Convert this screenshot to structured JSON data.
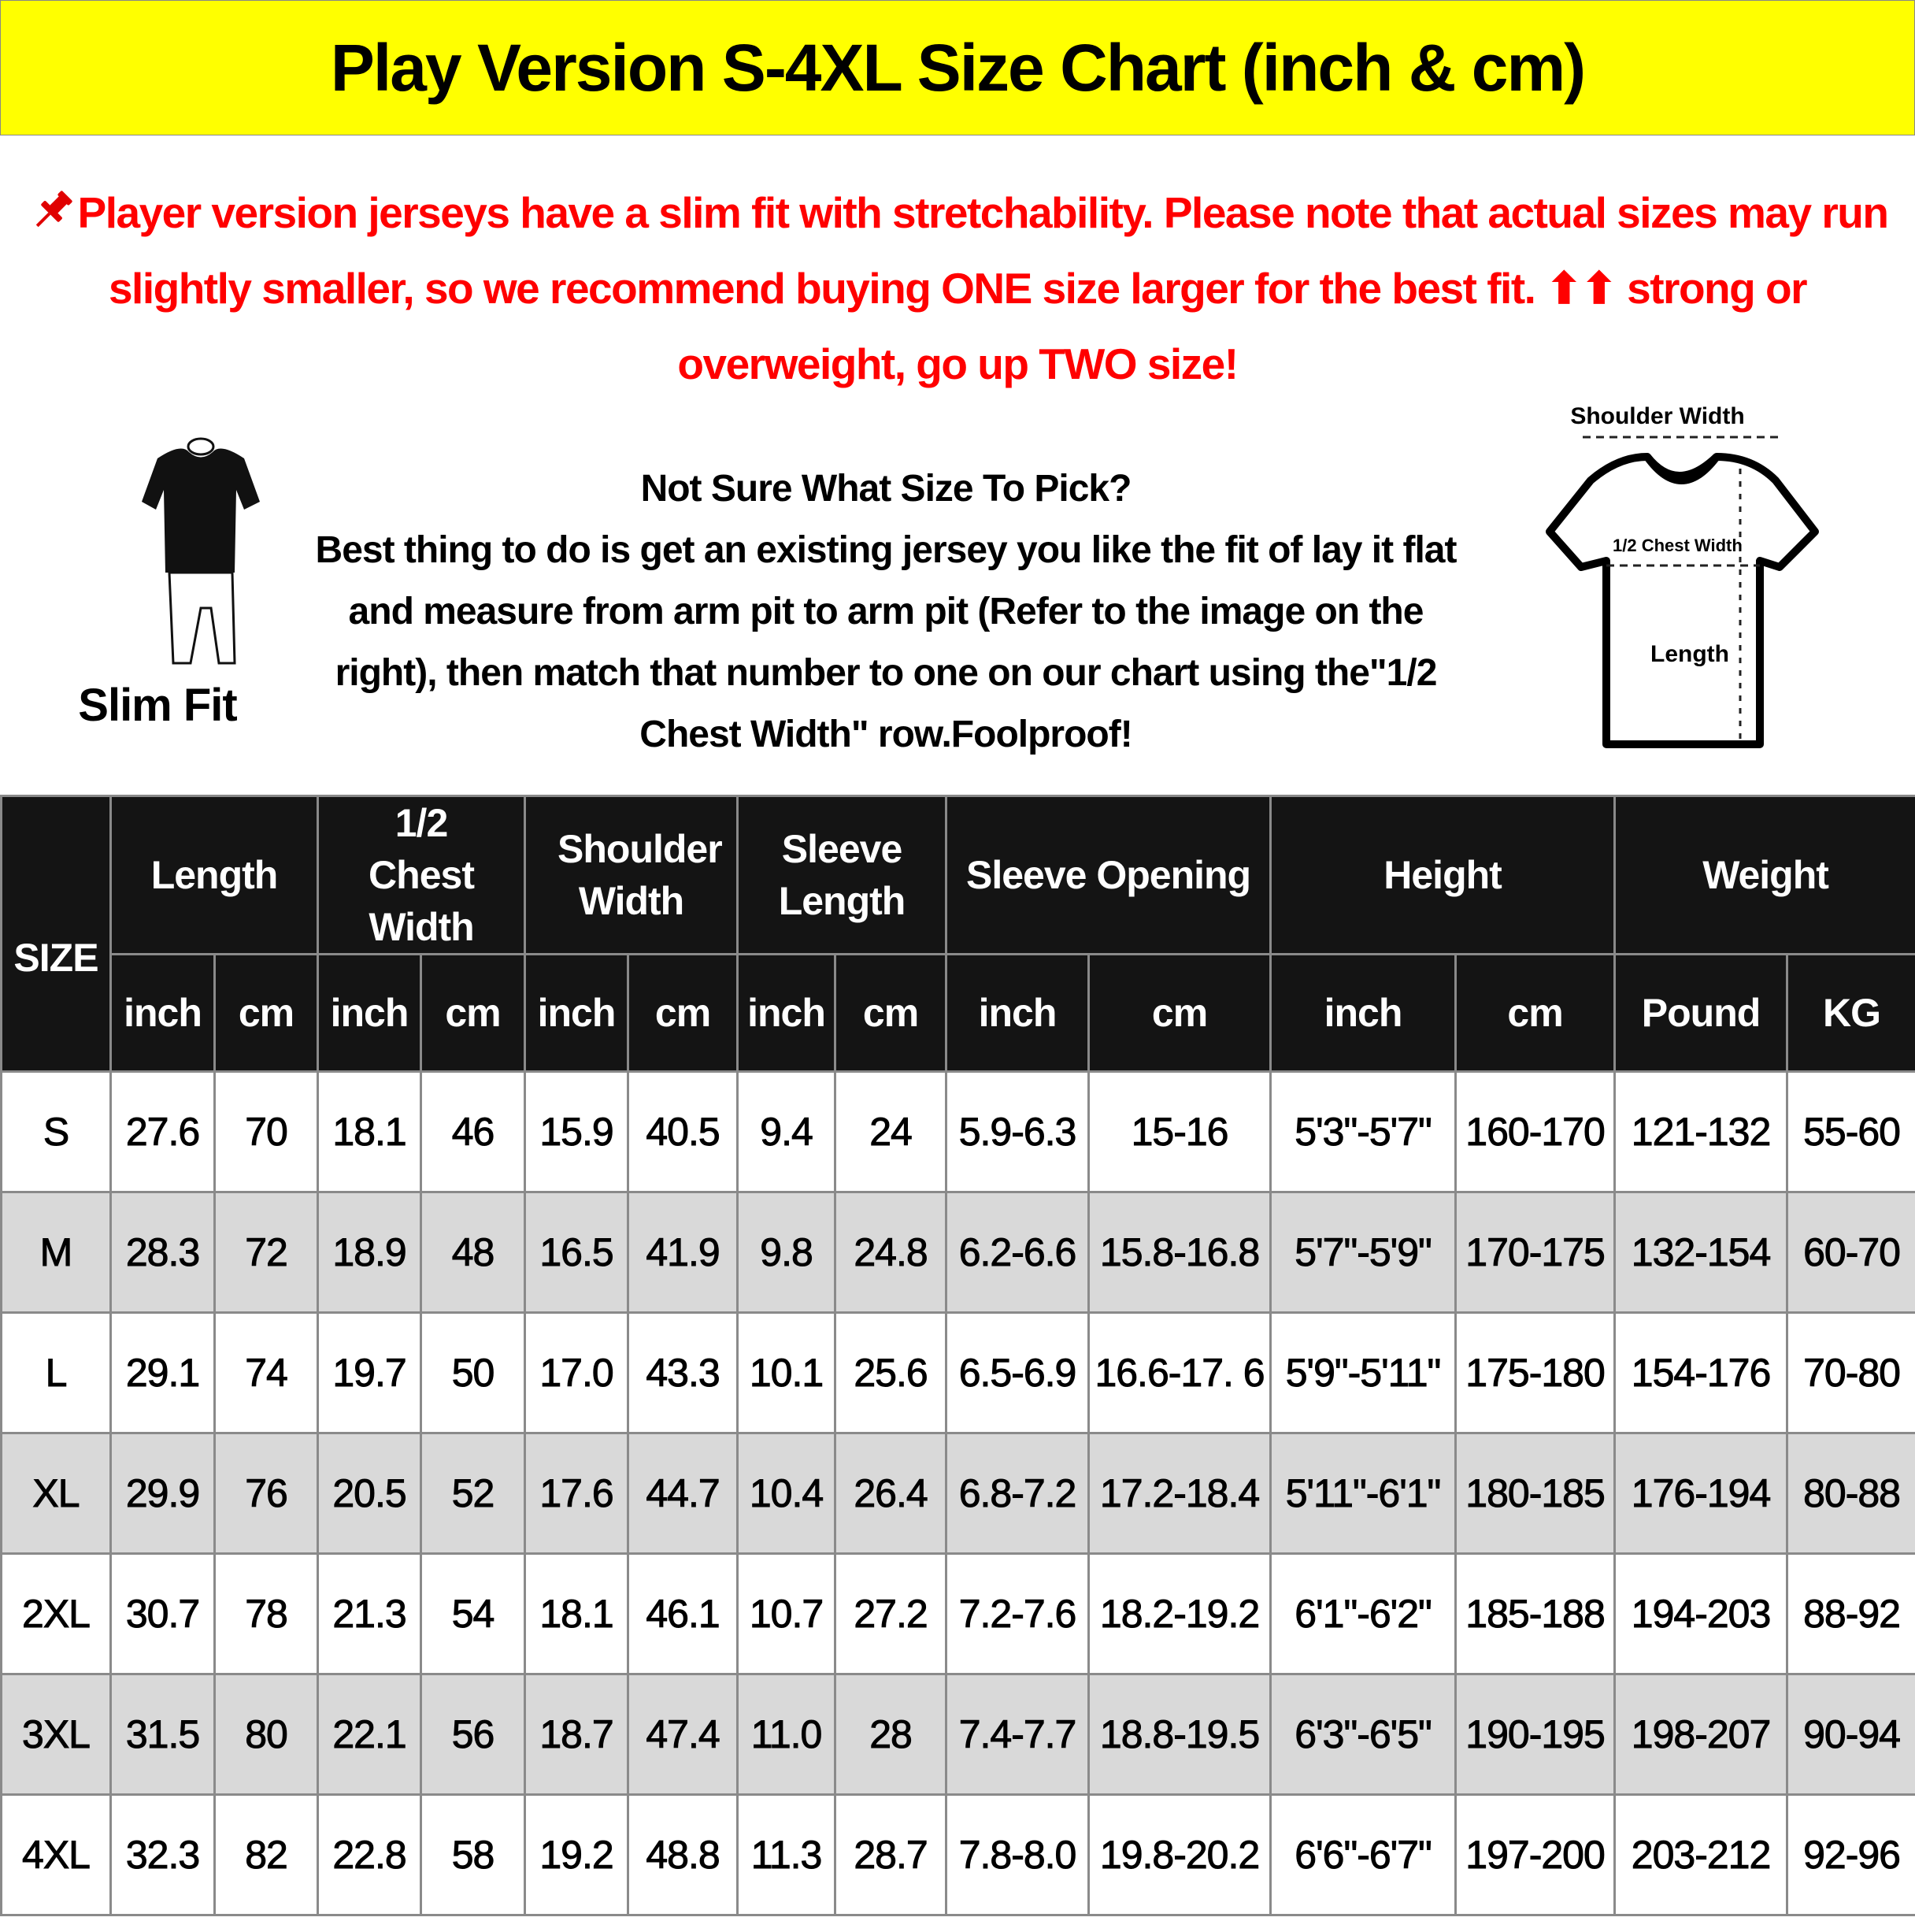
{
  "title": "Play Version S-4XL Size Chart (inch & cm)",
  "note": {
    "icon": "pushpin-icon",
    "text": "Player version jerseys have a slim fit with stretchability. Please note that actual sizes may run slightly smaller, so we recommend buying ONE size larger for the best fit. ⬆⬆ strong or overweight, go up TWO size!",
    "color": "#ff0000"
  },
  "slim_fit_label": "Slim Fit",
  "advice": {
    "heading": "Not Sure What Size To Pick?",
    "body": "Best thing to do is get an existing jersey you like the fit of lay it flat and measure from arm pit to arm pit (Refer to the image on the right), then match that number to one on our chart using the\"1/2 Chest Width\" row.Foolproof!"
  },
  "diagram": {
    "shoulder": "Shoulder Width",
    "chest": "1/2 Chest Width",
    "length": "Length"
  },
  "table": {
    "size_header": "SIZE",
    "groups": [
      "Length",
      "1/2 Chest Width",
      "Shoulder Width",
      "Sleeve Length",
      "Sleeve Opening",
      "Height",
      "Weight"
    ],
    "units": [
      "inch",
      "cm",
      "inch",
      "cm",
      "inch",
      "cm",
      "inch",
      "cm",
      "inch",
      "cm",
      "inch",
      "cm",
      "Pound",
      "KG"
    ],
    "rows": [
      [
        "S",
        "27.6",
        "70",
        "18.1",
        "46",
        "15.9",
        "40.5",
        "9.4",
        "24",
        "5.9-6.3",
        "15-16",
        "5'3\"-5'7\"",
        "160-170",
        "121-132",
        "55-60"
      ],
      [
        "M",
        "28.3",
        "72",
        "18.9",
        "48",
        "16.5",
        "41.9",
        "9.8",
        "24.8",
        "6.2-6.6",
        "15.8-16.8",
        "5'7\"-5'9\"",
        "170-175",
        "132-154",
        "60-70"
      ],
      [
        "L",
        "29.1",
        "74",
        "19.7",
        "50",
        "17.0",
        "43.3",
        "10.1",
        "25.6",
        "6.5-6.9",
        "16.6-17. 6",
        "5'9\"-5'11\"",
        "175-180",
        "154-176",
        "70-80"
      ],
      [
        "XL",
        "29.9",
        "76",
        "20.5",
        "52",
        "17.6",
        "44.7",
        "10.4",
        "26.4",
        "6.8-7.2",
        "17.2-18.4",
        "5'11\"-6'1\"",
        "180-185",
        "176-194",
        "80-88"
      ],
      [
        "2XL",
        "30.7",
        "78",
        "21.3",
        "54",
        "18.1",
        "46.1",
        "10.7",
        "27.2",
        "7.2-7.6",
        "18.2-19.2",
        "6'1\"-6'2\"",
        "185-188",
        "194-203",
        "88-92"
      ],
      [
        "3XL",
        "31.5",
        "80",
        "22.1",
        "56",
        "18.7",
        "47.4",
        "11.0",
        "28",
        "7.4-7.7",
        "18.8-19.5",
        "6'3\"-6'5\"",
        "190-195",
        "198-207",
        "90-94"
      ],
      [
        "4XL",
        "32.3",
        "82",
        "22.8",
        "58",
        "19.2",
        "48.8",
        "11.3",
        "28.7",
        "7.8-8.0",
        "19.8-20.2",
        "6'6\"-6'7\"",
        "197-200",
        "203-212",
        "92-96"
      ]
    ]
  }
}
